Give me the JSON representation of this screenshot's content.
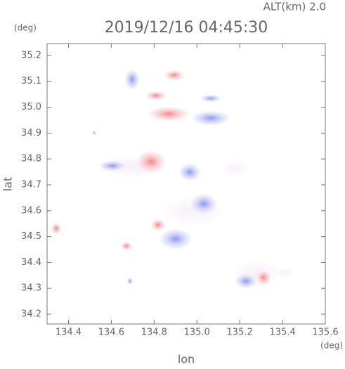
{
  "chart_data": {
    "type": "map",
    "title": "2019/12/16 04:45:30",
    "altitude_label": "ALT(km)  2.0",
    "y_unit": "(deg)",
    "x_unit": "(deg)",
    "x_label": "lon",
    "y_label": "lat",
    "xlim": [
      134.3,
      135.6
    ],
    "ylim": [
      34.162,
      35.246
    ],
    "xticks": [
      134.4,
      134.6,
      134.8,
      {
        "value": 135,
        "label": "135.0"
      },
      135.2,
      135.4,
      135.6
    ],
    "yticks": [
      34.2,
      34.3,
      34.4,
      34.5,
      34.6,
      34.7,
      34.8,
      34.9,
      {
        "value": 35,
        "label": "35.0"
      },
      35.1,
      35.2
    ]
  }
}
